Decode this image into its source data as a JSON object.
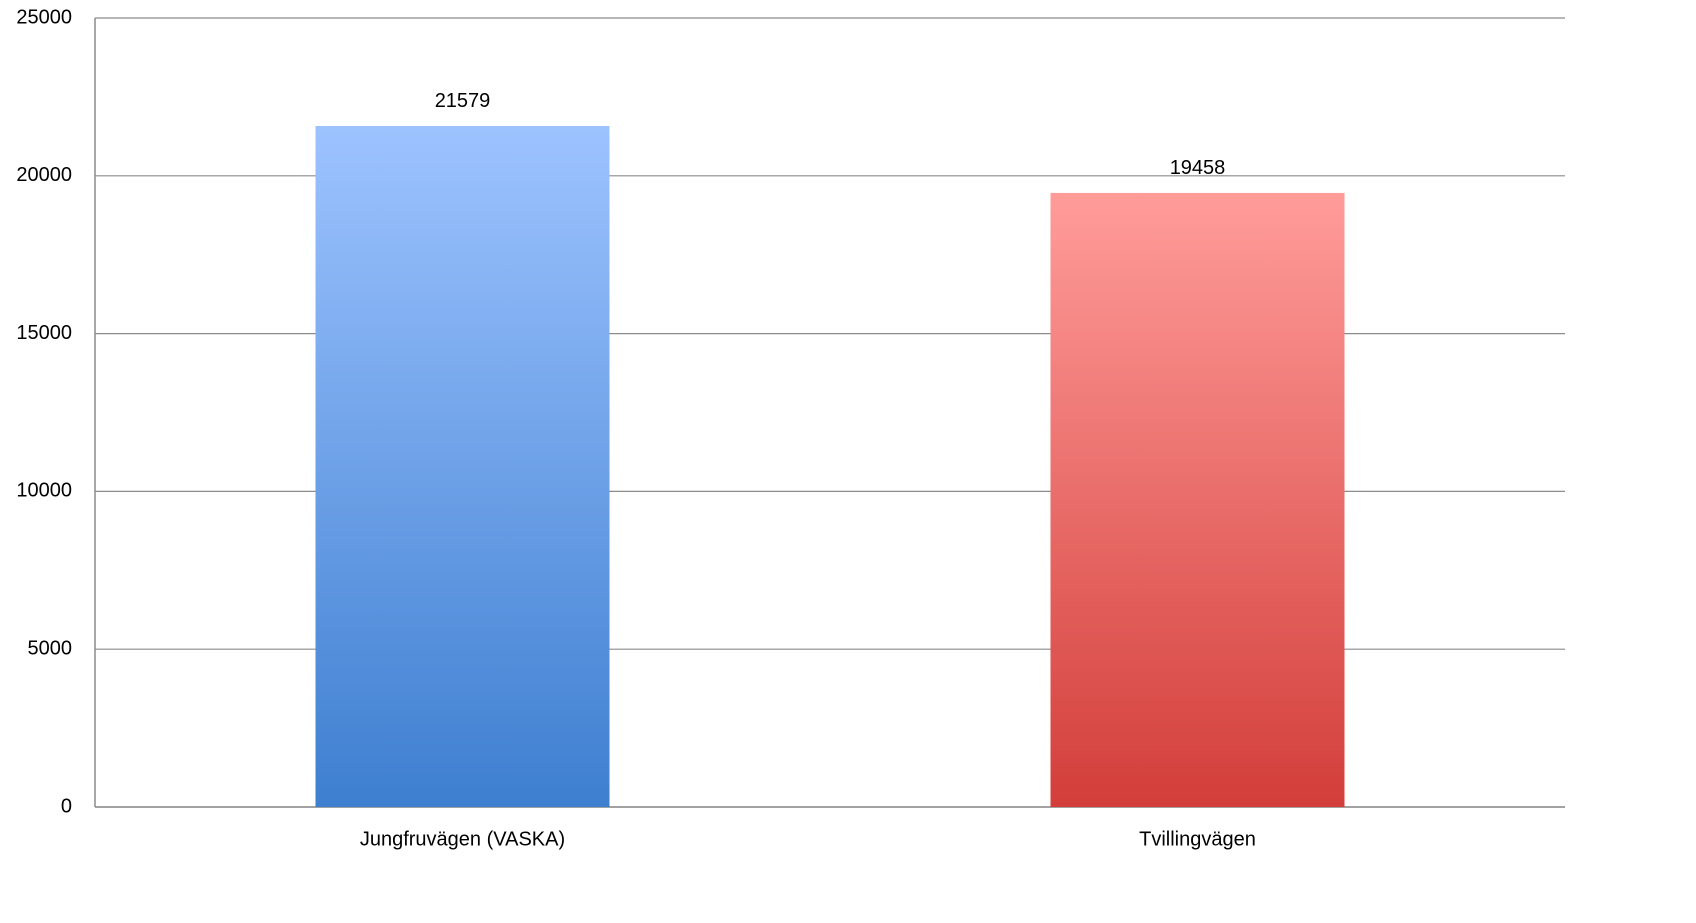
{
  "chart_data": {
    "type": "bar",
    "categories": [
      "Jungfruvägen (VASKA)",
      "Tvillingvägen"
    ],
    "values": [
      21579,
      19458
    ],
    "colors": [
      "#3e7fd0",
      "#d33e3a"
    ],
    "gradient_top_colors": [
      "#9dc3ff",
      "#ff9c9a"
    ],
    "ylim": [
      0,
      25000
    ],
    "yticks": [
      0,
      5000,
      10000,
      15000,
      20000,
      25000
    ],
    "grid": true
  }
}
